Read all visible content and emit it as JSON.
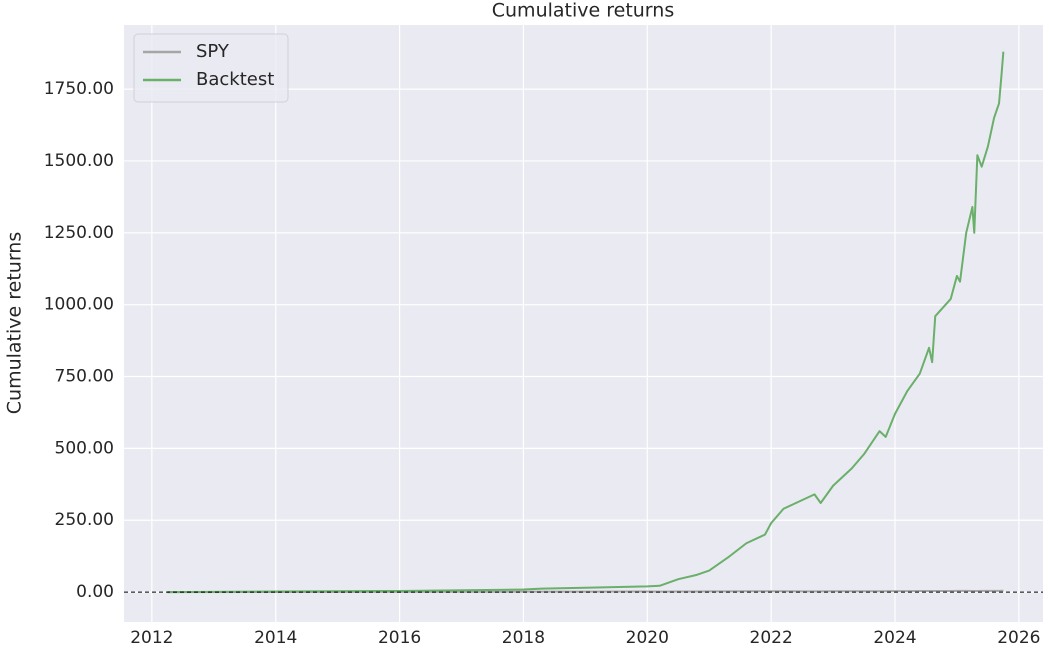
{
  "chart_data": {
    "type": "line",
    "title": "Cumulative returns",
    "y_label": "Cumulative returns",
    "x": [
      2012.25,
      2014,
      2016,
      2018,
      2018.3,
      2019,
      2020,
      2020.2,
      2020.5,
      2020.8,
      2021,
      2021.3,
      2021.6,
      2021.9,
      2022,
      2022.2,
      2022.5,
      2022.7,
      2022.8,
      2023,
      2023.3,
      2023.5,
      2023.75,
      2023.85,
      2024,
      2024.2,
      2024.4,
      2024.55,
      2024.6,
      2024.65,
      2024.9,
      2025,
      2025.05,
      2025.15,
      2025.25,
      2025.28,
      2025.33,
      2025.4,
      2025.5,
      2025.6,
      2025.68,
      2025.72,
      2025.75
    ],
    "series": [
      {
        "name": "SPY",
        "color": "#a6a6a6",
        "values": [
          0,
          0.5,
          1,
          1.5,
          1.6,
          1.8,
          2,
          1.7,
          2,
          2.2,
          2.5,
          2.7,
          2.9,
          3.1,
          3.2,
          2.9,
          2.7,
          2.6,
          2.5,
          2.8,
          3,
          3.1,
          3.2,
          3.2,
          3.4,
          3.6,
          3.8,
          3.9,
          3.8,
          3.9,
          4,
          4.1,
          4.1,
          4.1,
          4,
          3.9,
          4,
          4.1,
          4.2,
          4.3,
          4.4,
          4.5,
          4.5
        ]
      },
      {
        "name": "Backtest",
        "color": "#6aaf6a",
        "values": [
          0,
          2,
          4,
          9,
          12,
          15,
          20,
          22,
          45,
          60,
          75,
          120,
          170,
          200,
          240,
          290,
          320,
          340,
          310,
          370,
          430,
          480,
          560,
          540,
          620,
          700,
          760,
          850,
          800,
          960,
          1020,
          1100,
          1080,
          1250,
          1340,
          1250,
          1520,
          1480,
          1550,
          1650,
          1700,
          1800,
          1880
        ]
      }
    ],
    "xlim": [
      2011.55,
      2026.39
    ],
    "xticks": [
      2012,
      2014,
      2016,
      2018,
      2020,
      2022,
      2024,
      2026
    ],
    "ylim": [
      -104,
      1973
    ],
    "yticks": [
      {
        "value": 0,
        "label": "0.00"
      },
      {
        "value": 250,
        "label": "250.00"
      },
      {
        "value": 500,
        "label": "500.00"
      },
      {
        "value": 750,
        "label": "750.00"
      },
      {
        "value": 1000,
        "label": "1000.00"
      },
      {
        "value": 1250,
        "label": "1250.00"
      },
      {
        "value": 1500,
        "label": "1500.00"
      },
      {
        "value": 1750,
        "label": "1750.00"
      }
    ],
    "hline": 0,
    "grid": true,
    "legend": "upper left"
  }
}
